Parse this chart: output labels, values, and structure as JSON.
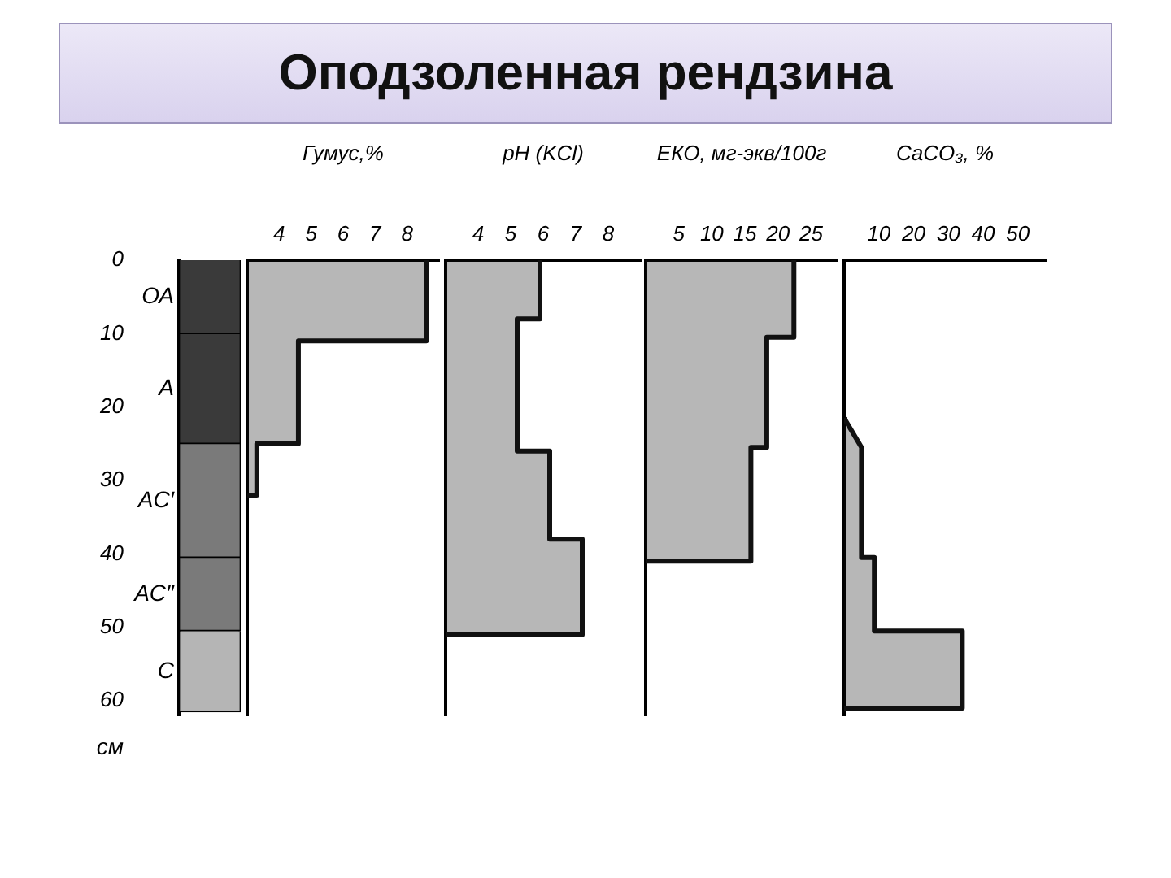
{
  "chart_data": [
    {
      "type": "bar",
      "ylabel": "см",
      "stacked": true,
      "categories": [
        null
      ],
      "ylim": [
        62,
        0
      ],
      "yticks": [
        0,
        10,
        20,
        30,
        40,
        50,
        60
      ],
      "tick_labels": "y",
      "series": [
        {
          "name": "ОА",
          "color": "#3a3a3a",
          "values": [
            10
          ]
        },
        {
          "name": "А",
          "color": "#3a3a3a",
          "values": [
            15
          ]
        },
        {
          "name": "AC′",
          "color": "#7a7a7a",
          "values": [
            15.5
          ]
        },
        {
          "name": "AC″",
          "color": "#7a7a7a",
          "values": [
            10
          ]
        },
        {
          "name": "C",
          "color": "#b5b5b5",
          "values": [
            11
          ]
        }
      ]
    },
    {
      "type": "area",
      "xlabel": "Гумус,%",
      "xlim": [
        3,
        9
      ],
      "xticks": [
        4,
        5,
        6,
        7,
        8
      ],
      "ylim": [
        62,
        0
      ],
      "tick_labels": "x",
      "series": [
        {
          "color": "#111111",
          "x": [
            8.6,
            8.6,
            4.6,
            4.6,
            3.3,
            3.3,
            3
          ],
          "values": [
            0,
            11,
            11,
            25,
            25,
            32,
            32
          ]
        }
      ]
    },
    {
      "type": "area",
      "title": "Оподзоленная рендзина",
      "xlabel": "pH (KCl)",
      "xlim": [
        3,
        9
      ],
      "xticks": [
        4,
        5,
        6,
        7,
        8
      ],
      "ylim": [
        62,
        0
      ],
      "tick_labels": "x",
      "series": [
        {
          "color": "#111111",
          "x": [
            5.9,
            5.9,
            5.2,
            5.2,
            6.2,
            6.2,
            7.2,
            7.2,
            3
          ],
          "values": [
            0,
            8,
            8,
            26,
            26,
            38,
            38,
            51,
            51
          ]
        }
      ]
    },
    {
      "type": "area",
      "xlabel": "ЕКО, мг-экв/100г",
      "xlim": [
        0,
        29
      ],
      "xticks": [
        5,
        10,
        15,
        20,
        25
      ],
      "ylim": [
        62,
        0
      ],
      "tick_labels": "x",
      "series": [
        {
          "color": "#111111",
          "x": [
            22.4,
            22.4,
            18.3,
            18.3,
            15.9,
            15.9,
            0
          ],
          "values": [
            0,
            10.5,
            10.5,
            25.5,
            25.5,
            41,
            41
          ]
        }
      ]
    },
    {
      "type": "area",
      "xlabel": "CaCO₃, %",
      "xlim": [
        0,
        58
      ],
      "xticks": [
        10,
        20,
        30,
        40,
        50
      ],
      "ylim": [
        62,
        0
      ],
      "tick_labels": "x",
      "series": [
        {
          "color": "#111111",
          "x": [
            0,
            5,
            5,
            8.7,
            8.7,
            34,
            34,
            0
          ],
          "values": [
            21.5,
            25.5,
            40.5,
            40.5,
            50.5,
            50.5,
            61,
            61
          ]
        }
      ]
    }
  ]
}
